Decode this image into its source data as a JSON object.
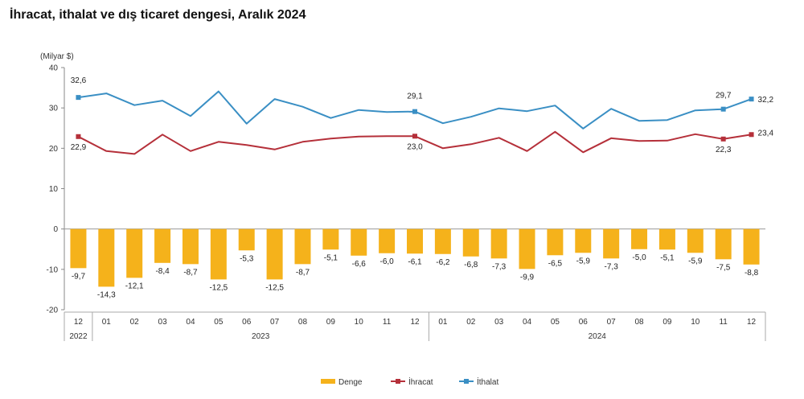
{
  "title": "İhracat, ithalat ve dış ticaret dengesi, Aralık 2024",
  "chart_data": {
    "type": "bar+line",
    "unit_label": "(Milyar $)",
    "ylim": [
      -20,
      40
    ],
    "yticks": [
      -20,
      -10,
      0,
      10,
      20,
      30,
      40
    ],
    "categories": [
      "12",
      "01",
      "02",
      "03",
      "04",
      "05",
      "06",
      "07",
      "08",
      "09",
      "10",
      "11",
      "12",
      "01",
      "02",
      "03",
      "04",
      "05",
      "06",
      "07",
      "08",
      "09",
      "10",
      "11",
      "12"
    ],
    "year_groups": [
      {
        "label": "2022",
        "from": 0,
        "to": 0
      },
      {
        "label": "2023",
        "from": 1,
        "to": 12
      },
      {
        "label": "2024",
        "from": 13,
        "to": 24
      }
    ],
    "series": [
      {
        "name": "Denge",
        "kind": "bar",
        "color": "#F5B21B",
        "values": [
          -9.7,
          -14.3,
          -12.1,
          -8.4,
          -8.7,
          -12.5,
          -5.3,
          -12.5,
          -8.7,
          -5.1,
          -6.6,
          -6.0,
          -6.1,
          -6.2,
          -6.8,
          -7.3,
          -9.9,
          -6.5,
          -5.9,
          -7.3,
          -5.0,
          -5.1,
          -5.9,
          -7.5,
          -8.8
        ],
        "labels": [
          "-9,7",
          "-14,3",
          "-12,1",
          "-8,4",
          "-8,7",
          "-12,5",
          "-5,3",
          "-12,5",
          "-8,7",
          "-5,1",
          "-6,6",
          "-6,0",
          "-6,1",
          "-6,2",
          "-6,8",
          "-7,3",
          "-9,9",
          "-6,5",
          "-5,9",
          "-7,3",
          "-5,0",
          "-5,1",
          "-5,9",
          "-7,5",
          "-8,8"
        ]
      },
      {
        "name": "İhracat",
        "kind": "line",
        "color": "#B5303A",
        "values": [
          22.9,
          19.3,
          18.6,
          23.4,
          19.3,
          21.6,
          20.8,
          19.7,
          21.6,
          22.4,
          22.9,
          23.0,
          23.0,
          20.0,
          21.0,
          22.6,
          19.3,
          24.1,
          19.0,
          22.5,
          21.8,
          21.9,
          23.5,
          22.3,
          23.4
        ],
        "point_labels": [
          {
            "index": 0,
            "text": "22,9"
          },
          {
            "index": 12,
            "text": "23,0"
          },
          {
            "index": 23,
            "text": "22,3"
          },
          {
            "index": 24,
            "text": "23,4"
          }
        ]
      },
      {
        "name": "İthalat",
        "kind": "line",
        "color": "#3A8FC4",
        "values": [
          32.6,
          33.6,
          30.7,
          31.8,
          28.0,
          34.1,
          26.1,
          32.2,
          30.3,
          27.5,
          29.5,
          29.0,
          29.1,
          26.2,
          27.8,
          29.9,
          29.2,
          30.6,
          24.9,
          29.8,
          26.8,
          27.0,
          29.4,
          29.7,
          32.2
        ],
        "point_labels": [
          {
            "index": 0,
            "text": "32,6"
          },
          {
            "index": 12,
            "text": "29,1"
          },
          {
            "index": 23,
            "text": "29,7"
          },
          {
            "index": 24,
            "text": "32,2"
          }
        ]
      }
    ],
    "marker_indices": [
      0,
      12,
      23,
      24
    ],
    "legend_position": "bottom",
    "grid": false
  }
}
